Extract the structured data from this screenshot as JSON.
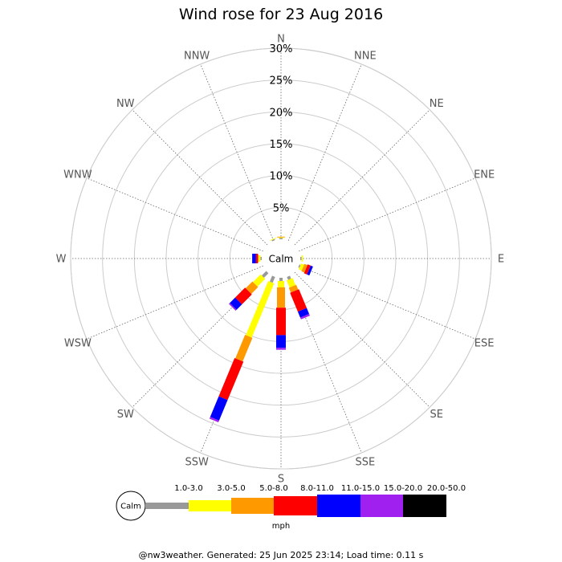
{
  "chart_data": {
    "type": "wind-rose",
    "title": "Wind rose for 23 Aug 2016",
    "directions": [
      "N",
      "NNE",
      "NE",
      "ENE",
      "E",
      "ESE",
      "SE",
      "SSE",
      "S",
      "SSW",
      "SW",
      "WSW",
      "W",
      "WNW",
      "NW",
      "NNW"
    ],
    "radial_ticks": [
      "5%",
      "10%",
      "15%",
      "20%",
      "25%",
      "30%"
    ],
    "radial_max": 30,
    "calm_label": "Calm",
    "speed_bins": [
      {
        "label": "1.0-3.0",
        "color": "#999999"
      },
      {
        "label": "3.0-5.0",
        "color": "#ffff00"
      },
      {
        "label": "5.0-8.0",
        "color": "#ff9900"
      },
      {
        "label": "8.0-11.0",
        "color": "#ff0000"
      },
      {
        "label": "11.0-15.0",
        "color": "#0000ff"
      },
      {
        "label": "15.0-20.0",
        "color": "#a020f0"
      },
      {
        "label": "20.0-50.0",
        "color": "#000000"
      }
    ],
    "units": "mph",
    "series": [
      {
        "direction": "N",
        "values": [
          0.2,
          0.1,
          0.1,
          0.0,
          0.0,
          0.0,
          0.0
        ]
      },
      {
        "direction": "NNE",
        "values": [
          0.0,
          0.0,
          0.0,
          0.0,
          0.0,
          0.0,
          0.0
        ]
      },
      {
        "direction": "NE",
        "values": [
          0.0,
          0.0,
          0.0,
          0.0,
          0.0,
          0.0,
          0.0
        ]
      },
      {
        "direction": "ENE",
        "values": [
          0.0,
          0.0,
          0.0,
          0.0,
          0.0,
          0.0,
          0.0
        ]
      },
      {
        "direction": "E",
        "values": [
          0.2,
          0.2,
          0.0,
          0.0,
          0.0,
          0.0,
          0.0
        ]
      },
      {
        "direction": "ESE",
        "values": [
          0.2,
          0.5,
          0.5,
          0.5,
          0.4,
          0.0,
          0.0
        ]
      },
      {
        "direction": "SE",
        "values": [
          0.0,
          0.0,
          0.0,
          0.0,
          0.0,
          0.0,
          0.0
        ]
      },
      {
        "direction": "SSE",
        "values": [
          0.5,
          1.2,
          0.8,
          3.2,
          1.0,
          0.3,
          0.0
        ]
      },
      {
        "direction": "S",
        "values": [
          0.5,
          1.0,
          3.2,
          4.3,
          2.0,
          0.3,
          0.0
        ]
      },
      {
        "direction": "SSW",
        "values": [
          1.0,
          9.2,
          4.0,
          6.5,
          3.5,
          0.3,
          0.0
        ]
      },
      {
        "direction": "SW",
        "values": [
          1.0,
          1.7,
          1.5,
          2.2,
          1.2,
          0.2,
          0.0
        ]
      },
      {
        "direction": "WSW",
        "values": [
          0.0,
          0.0,
          0.0,
          0.0,
          0.0,
          0.0,
          0.0
        ]
      },
      {
        "direction": "W",
        "values": [
          0.2,
          0.3,
          0.1,
          0.3,
          0.6,
          0.0,
          0.0
        ]
      },
      {
        "direction": "WNW",
        "values": [
          0.0,
          0.0,
          0.0,
          0.0,
          0.0,
          0.0,
          0.0
        ]
      },
      {
        "direction": "NW",
        "values": [
          0.0,
          0.0,
          0.0,
          0.0,
          0.0,
          0.0,
          0.0
        ]
      },
      {
        "direction": "NNW",
        "values": [
          0.2,
          0.1,
          0.0,
          0.0,
          0.0,
          0.0,
          0.0
        ]
      }
    ],
    "grid": true,
    "legend": "bottom"
  },
  "footer": "@nw3weather. Generated: 25 Jun 2025 23:14; Load time: 0.11 s"
}
